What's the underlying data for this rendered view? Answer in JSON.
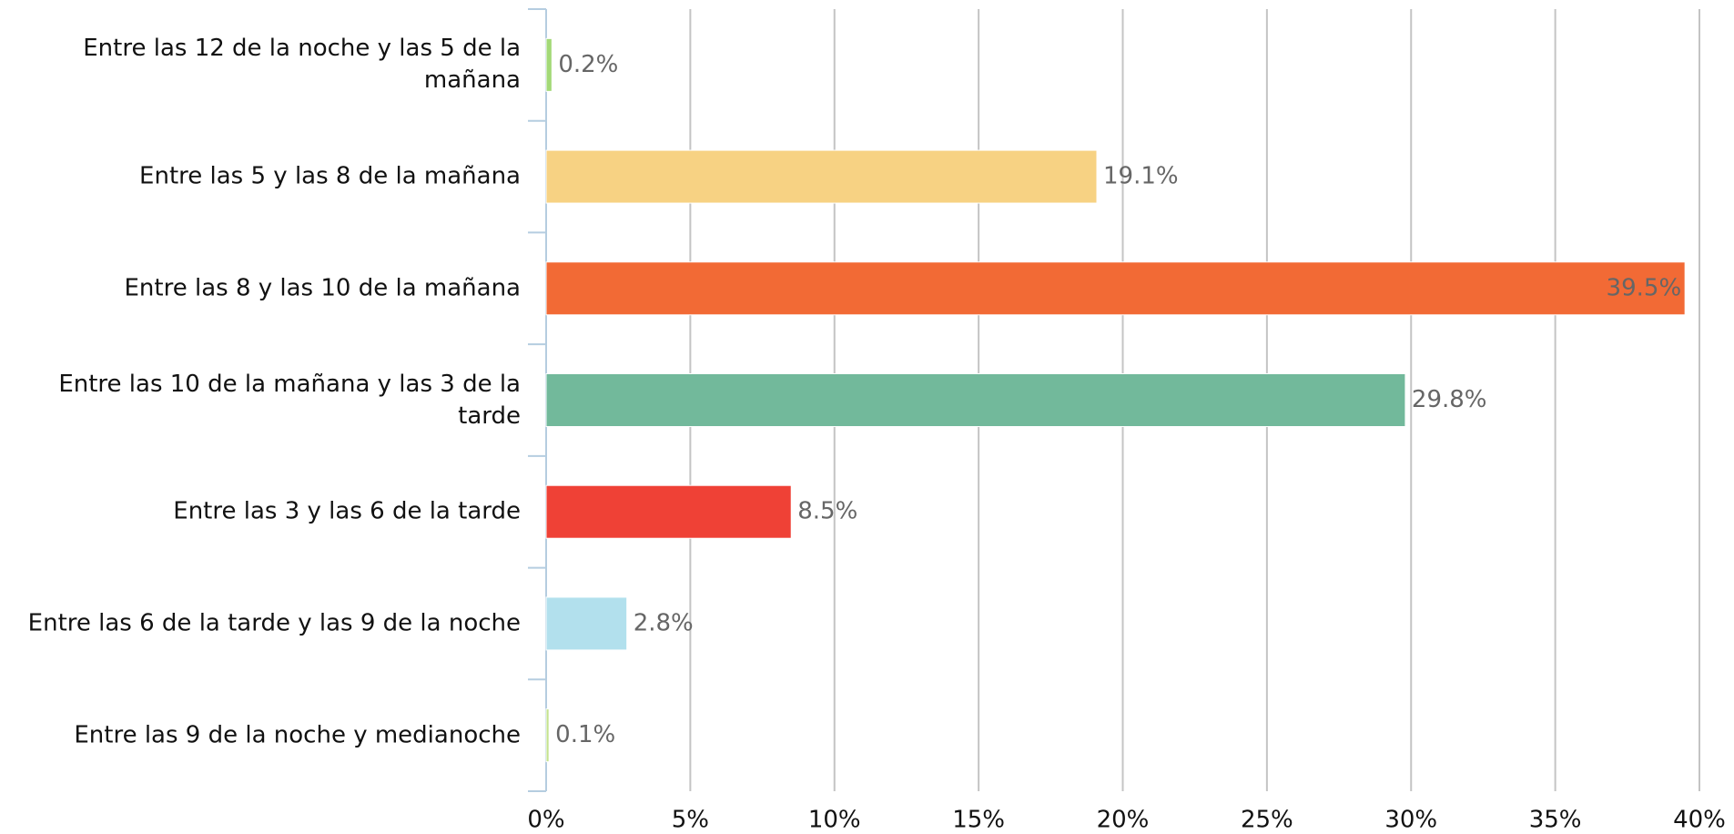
{
  "chart_data": {
    "type": "bar",
    "orientation": "horizontal",
    "categories": [
      "Entre las 12 de la noche y las 5 de la mañana",
      "Entre las 5 y las 8 de la mañana",
      "Entre las 8 y las 10 de la mañana",
      "Entre las 10 de la mañana y las 3 de la tarde",
      "Entre las 3 y las 6 de la tarde",
      "Entre las 6 de la tarde y las 9 de la noche",
      "Entre las 9 de la noche y medianoche"
    ],
    "values": [
      0.2,
      19.1,
      39.5,
      29.8,
      8.5,
      2.8,
      0.1
    ],
    "value_labels": [
      "0.2%",
      "19.1%",
      "39.5%",
      "29.8%",
      "8.5%",
      "2.8%",
      "0.1%"
    ],
    "colors": [
      "#a3d977",
      "#f7d283",
      "#f26a35",
      "#72b99b",
      "#ef4136",
      "#b2e0ed",
      "#c5e38e"
    ],
    "xlim": [
      0,
      40
    ],
    "xticks": [
      {
        "value": 0,
        "label": "0%"
      },
      {
        "value": 5,
        "label": "5%"
      },
      {
        "value": 10,
        "label": "10%"
      },
      {
        "value": 15,
        "label": "15%"
      },
      {
        "value": 20,
        "label": "20%"
      },
      {
        "value": 25,
        "label": "25%"
      },
      {
        "value": 30,
        "label": "30%"
      },
      {
        "value": 35,
        "label": "35%"
      },
      {
        "value": 40,
        "label": "40%"
      }
    ],
    "grid": true
  }
}
